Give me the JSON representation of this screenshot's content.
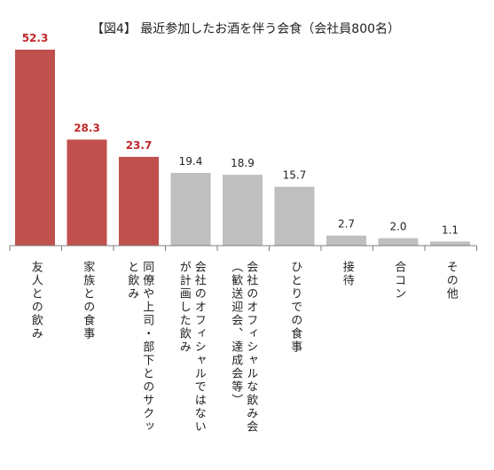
{
  "chart_data": {
    "type": "bar",
    "title": "【図4】 最近参加したお酒を伴う会食（会社員800名）",
    "categories": [
      [
        "友人との飲み"
      ],
      [
        "家族との食事"
      ],
      [
        "同僚や上司・部下とのサクッ",
        "と飲み"
      ],
      [
        "会社のオフィシャルではない",
        "が計画した飲み"
      ],
      [
        "会社のオフィシャルな飲み会",
        "（歓送迎会、達成会等）"
      ],
      [
        "ひとりでの食事"
      ],
      [
        "接待"
      ],
      [
        "合コン"
      ],
      [
        "その他"
      ]
    ],
    "values": [
      52.3,
      28.3,
      23.7,
      19.4,
      18.9,
      15.7,
      2.7,
      2.0,
      1.1
    ],
    "value_labels": [
      "52.3",
      "28.3",
      "23.7",
      "19.4",
      "18.9",
      "15.7",
      "2.7",
      "2.0",
      "1.1"
    ],
    "highlighted_count": 3,
    "ylim": [
      0,
      56
    ],
    "grid": false,
    "colors": {
      "highlight_bar": "#c0504d",
      "normal_bar": "#bfbfbf",
      "highlight_label": "#c0282a",
      "normal_label": "#222222",
      "axis": "#7f7f7f"
    }
  }
}
